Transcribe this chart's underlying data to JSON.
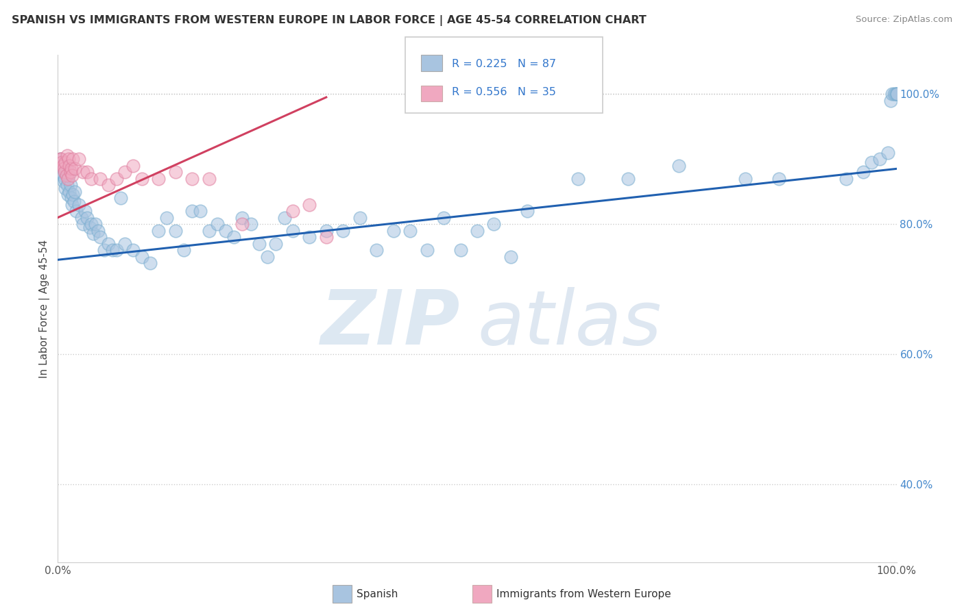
{
  "title": "SPANISH VS IMMIGRANTS FROM WESTERN EUROPE IN LABOR FORCE | AGE 45-54 CORRELATION CHART",
  "source": "Source: ZipAtlas.com",
  "ylabel": "In Labor Force | Age 45-54",
  "xlim": [
    0.0,
    1.0
  ],
  "ylim": [
    0.28,
    1.06
  ],
  "y_tick_values_right": [
    0.4,
    0.6,
    0.8,
    1.0
  ],
  "y_tick_labels_right": [
    "40.0%",
    "60.0%",
    "80.0%",
    "100.0%"
  ],
  "blue_color": "#a8c4e0",
  "blue_edge_color": "#7aaed0",
  "pink_color": "#f0a8c0",
  "pink_edge_color": "#e080a0",
  "blue_line_color": "#2060b0",
  "pink_line_color": "#d04060",
  "legend_r1": "R = 0.225",
  "legend_n1": "N = 87",
  "legend_r2": "R = 0.556",
  "legend_n2": "N = 35",
  "blue_trend_x0": 0.0,
  "blue_trend_y0": 0.745,
  "blue_trend_x1": 1.0,
  "blue_trend_y1": 0.885,
  "pink_trend_x0": 0.0,
  "pink_trend_y0": 0.81,
  "pink_trend_x1": 0.32,
  "pink_trend_y1": 0.995,
  "blue_x": [
    0.003,
    0.004,
    0.005,
    0.006,
    0.007,
    0.008,
    0.009,
    0.01,
    0.011,
    0.012,
    0.013,
    0.014,
    0.015,
    0.016,
    0.017,
    0.018,
    0.019,
    0.02,
    0.022,
    0.025,
    0.028,
    0.03,
    0.032,
    0.035,
    0.038,
    0.04,
    0.042,
    0.045,
    0.048,
    0.05,
    0.055,
    0.06,
    0.065,
    0.07,
    0.075,
    0.08,
    0.09,
    0.1,
    0.11,
    0.12,
    0.13,
    0.14,
    0.15,
    0.16,
    0.17,
    0.18,
    0.19,
    0.2,
    0.21,
    0.22,
    0.23,
    0.24,
    0.25,
    0.26,
    0.27,
    0.28,
    0.3,
    0.32,
    0.34,
    0.36,
    0.38,
    0.4,
    0.42,
    0.44,
    0.46,
    0.48,
    0.5,
    0.52,
    0.54,
    0.56,
    0.62,
    0.68,
    0.74,
    0.82,
    0.86,
    0.94,
    0.96,
    0.97,
    0.98,
    0.99,
    0.993,
    0.995,
    0.997,
    0.999,
    1.0,
    1.0,
    1.0
  ],
  "blue_y": [
    0.9,
    0.88,
    0.89,
    0.875,
    0.865,
    0.87,
    0.855,
    0.885,
    0.86,
    0.845,
    0.875,
    0.85,
    0.86,
    0.84,
    0.83,
    0.845,
    0.835,
    0.85,
    0.82,
    0.83,
    0.81,
    0.8,
    0.82,
    0.81,
    0.795,
    0.8,
    0.785,
    0.8,
    0.79,
    0.78,
    0.76,
    0.77,
    0.76,
    0.76,
    0.84,
    0.77,
    0.76,
    0.75,
    0.74,
    0.79,
    0.81,
    0.79,
    0.76,
    0.82,
    0.82,
    0.79,
    0.8,
    0.79,
    0.78,
    0.81,
    0.8,
    0.77,
    0.75,
    0.77,
    0.81,
    0.79,
    0.78,
    0.79,
    0.79,
    0.81,
    0.76,
    0.79,
    0.79,
    0.76,
    0.81,
    0.76,
    0.79,
    0.8,
    0.75,
    0.82,
    0.87,
    0.87,
    0.89,
    0.87,
    0.87,
    0.87,
    0.88,
    0.895,
    0.9,
    0.91,
    0.99,
    1.0,
    1.0,
    1.0,
    1.0,
    1.0,
    1.0
  ],
  "pink_x": [
    0.003,
    0.004,
    0.005,
    0.006,
    0.007,
    0.008,
    0.009,
    0.01,
    0.011,
    0.012,
    0.013,
    0.014,
    0.015,
    0.016,
    0.017,
    0.018,
    0.02,
    0.025,
    0.03,
    0.035,
    0.04,
    0.05,
    0.06,
    0.07,
    0.08,
    0.09,
    0.1,
    0.12,
    0.14,
    0.16,
    0.18,
    0.22,
    0.28,
    0.3,
    0.32
  ],
  "pink_y": [
    0.9,
    0.9,
    0.895,
    0.89,
    0.885,
    0.88,
    0.895,
    0.875,
    0.905,
    0.87,
    0.9,
    0.89,
    0.88,
    0.885,
    0.875,
    0.9,
    0.885,
    0.9,
    0.88,
    0.88,
    0.87,
    0.87,
    0.86,
    0.87,
    0.88,
    0.89,
    0.87,
    0.87,
    0.88,
    0.87,
    0.87,
    0.8,
    0.82,
    0.83,
    0.78
  ]
}
